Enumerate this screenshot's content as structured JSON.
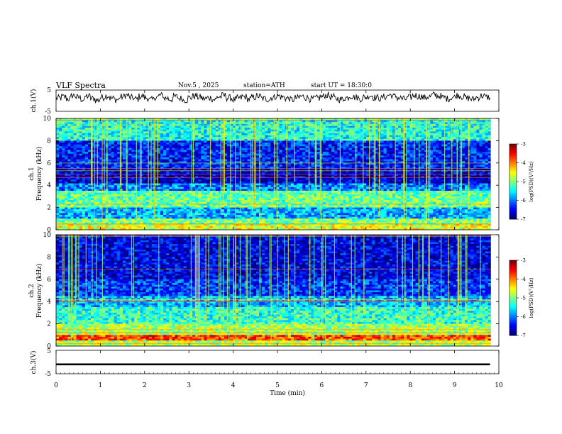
{
  "header": {
    "title": "VLF Spectra",
    "date": "Nov.5 , 2025",
    "station": "station=ATH",
    "start": "start UT = 18:30:0"
  },
  "chart_data": [
    {
      "type": "line",
      "panel": "ch1-waveform",
      "ylabel": "ch.1(V)",
      "yticks": [
        "5",
        "-5"
      ],
      "ylim": [
        -5,
        5
      ],
      "xlim": [
        0,
        10
      ],
      "x_end": 9.8,
      "series": [
        {
          "values": [
            1.2,
            1.8,
            0.9,
            2.4,
            1.5,
            0.6,
            2.1,
            1.0,
            0.2,
            1.6,
            2.3,
            1.1,
            0.5,
            1.8,
            2.6,
            1.4,
            0.8,
            2.0,
            1.3,
            0.4,
            1.7,
            2.5,
            1.2,
            0.7,
            1.9,
            1.1,
            0.3,
            1.5,
            2.2,
            1.6,
            0.9,
            1.4,
            0.6,
            1.8,
            2.4,
            1.3,
            0.5,
            1.2,
            1.9,
            0.8,
            1.6,
            2.1,
            1.0,
            0.7,
            1.5,
            2.3,
            1.7,
            1.1,
            0.4,
            1.3,
            2.0,
            1.5,
            0.8,
            1.2,
            1.9,
            2.6,
            1.8,
            1.0,
            0.6,
            1.4,
            2.2,
            1.6,
            0.9,
            1.7,
            2.4,
            1.5,
            1.1,
            1.8,
            2.7,
            2.0,
            1.3,
            0.8,
            1.6,
            2.5,
            2.1,
            1.4,
            1.9,
            2.8,
            2.2,
            1.5,
            1.0,
            1.7,
            2.6,
            1.9,
            1.2,
            0.7,
            1.5,
            2.3,
            1.6,
            0.9
          ]
        }
      ]
    },
    {
      "type": "heatmap",
      "panel": "ch1-spectrogram",
      "ylabel": "ch.1\nFrequency (kHz)",
      "yticks": [
        "0",
        "2",
        "4",
        "6",
        "8",
        "10"
      ],
      "ylim": [
        0,
        10
      ],
      "xlim": [
        0,
        10
      ],
      "value_range": [
        -7,
        -3
      ],
      "colorbar_label": "log(PSD)(V²/Hz)",
      "colorbar_ticks": [
        "-3",
        "-4",
        "-5",
        "-6",
        "-7"
      ],
      "bands": [
        {
          "from": 0,
          "to": 0.5,
          "level": -4.6
        },
        {
          "from": 0.5,
          "to": 1.0,
          "level": -5.0
        },
        {
          "from": 1.0,
          "to": 2.0,
          "level": -5.8
        },
        {
          "from": 2.0,
          "to": 3.5,
          "level": -5.1
        },
        {
          "from": 3.5,
          "to": 4.2,
          "level": -6.0
        },
        {
          "from": 4.2,
          "to": 5.5,
          "level": -6.7
        },
        {
          "from": 5.5,
          "to": 8.0,
          "level": -6.4
        },
        {
          "from": 8.0,
          "to": 10.0,
          "level": -5.4
        }
      ]
    },
    {
      "type": "heatmap",
      "panel": "ch2-spectrogram",
      "ylabel": "ch.2\nFrequency (kHz)",
      "yticks": [
        "0",
        "2",
        "4",
        "6",
        "8",
        "10"
      ],
      "ylim": [
        0,
        10
      ],
      "xlim": [
        0,
        10
      ],
      "value_range": [
        -7,
        -3
      ],
      "colorbar_label": "log(PSD)(V²/Hz)",
      "colorbar_ticks": [
        "-3",
        "-4",
        "-5",
        "-6",
        "-7"
      ],
      "bands": [
        {
          "from": 0,
          "to": 0.5,
          "level": -4.8
        },
        {
          "from": 0.5,
          "to": 1.0,
          "level": -3.8
        },
        {
          "from": 1.0,
          "to": 2.0,
          "level": -4.8
        },
        {
          "from": 2.0,
          "to": 3.5,
          "level": -5.3
        },
        {
          "from": 3.5,
          "to": 4.5,
          "level": -5.8
        },
        {
          "from": 4.5,
          "to": 6.0,
          "level": -6.3
        },
        {
          "from": 6.0,
          "to": 10.0,
          "level": -6.6
        }
      ]
    },
    {
      "type": "line",
      "panel": "ch3-waveform",
      "ylabel": "ch.3(V)",
      "yticks": [
        "5",
        "-5"
      ],
      "ylim": [
        -5,
        5
      ],
      "xlim": [
        0,
        10
      ],
      "x_end": 9.8,
      "series": [
        {
          "values": [
            -1.0,
            -1.0
          ]
        }
      ]
    }
  ],
  "x_axis": {
    "label": "Time (min)",
    "ticks": [
      "0",
      "1",
      "2",
      "3",
      "4",
      "5",
      "6",
      "7",
      "8",
      "9",
      "10"
    ]
  }
}
